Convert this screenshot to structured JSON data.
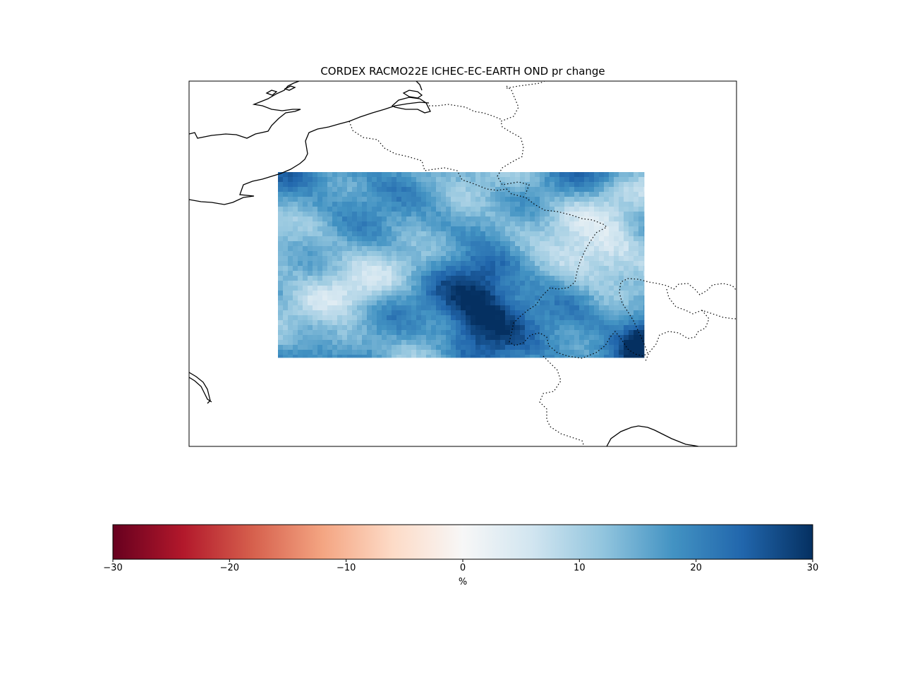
{
  "title": "CORDEX RACMO22E ICHEC-EC-EARTH OND pr change",
  "colorbar": {
    "label": "%",
    "min": -30,
    "max": 30,
    "colormap": "RdBu",
    "ticks": [
      -30,
      -20,
      -10,
      0,
      10,
      20,
      30
    ],
    "tick_labels": [
      "−30",
      "−20",
      "−10",
      "0",
      "10",
      "20",
      "30"
    ],
    "stops": [
      "#67001f",
      "#b2182b",
      "#d6604d",
      "#f4a582",
      "#fddbc7",
      "#f7f7f7",
      "#d1e5f0",
      "#92c5de",
      "#4393c3",
      "#2166ac",
      "#053061"
    ]
  },
  "map": {
    "coastline_color": "#000000",
    "border_style": "dotted",
    "field_description_colors": {
      "low": "#f7f7f7",
      "mid": "#4393c3",
      "high": "#053061"
    }
  }
}
